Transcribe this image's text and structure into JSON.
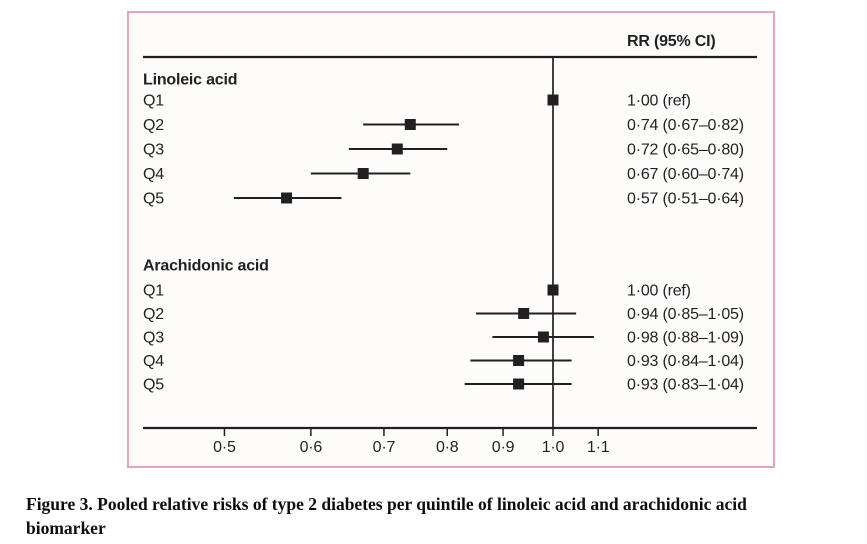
{
  "caption": {
    "line1": "Figure 3. Pooled relative risks of type 2 diabetes per quintile of linoleic acid and arachidonic acid",
    "line2": "biomarker"
  },
  "chart_data": {
    "type": "forest",
    "rr_header": "RR (95% CI)",
    "x_axis": {
      "scale": "log",
      "ticks": [
        0.5,
        0.6,
        0.7,
        0.8,
        0.9,
        1.0,
        1.1
      ],
      "tick_labels": [
        "0·5",
        "0·6",
        "0·7",
        "0·8",
        "0·9",
        "1·0",
        "1·1"
      ],
      "reference_line": 1.0,
      "range": [
        0.42,
        1.55
      ]
    },
    "sections": [
      {
        "label": "Linoleic acid",
        "rows": [
          {
            "label": "Q1",
            "rr": 1.0,
            "ci_low": null,
            "ci_high": null,
            "text": "1·00 (ref)"
          },
          {
            "label": "Q2",
            "rr": 0.74,
            "ci_low": 0.67,
            "ci_high": 0.82,
            "text": "0·74 (0·67–0·82)"
          },
          {
            "label": "Q3",
            "rr": 0.72,
            "ci_low": 0.65,
            "ci_high": 0.8,
            "text": "0·72 (0·65–0·80)"
          },
          {
            "label": "Q4",
            "rr": 0.67,
            "ci_low": 0.6,
            "ci_high": 0.74,
            "text": "0·67 (0·60–0·74)"
          },
          {
            "label": "Q5",
            "rr": 0.57,
            "ci_low": 0.51,
            "ci_high": 0.64,
            "text": "0·57 (0·51–0·64)"
          }
        ]
      },
      {
        "label": "Arachidonic acid",
        "rows": [
          {
            "label": "Q1",
            "rr": 1.0,
            "ci_low": null,
            "ci_high": null,
            "text": "1·00 (ref)"
          },
          {
            "label": "Q2",
            "rr": 0.94,
            "ci_low": 0.85,
            "ci_high": 1.05,
            "text": "0·94 (0·85–1·05)"
          },
          {
            "label": "Q3",
            "rr": 0.98,
            "ci_low": 0.88,
            "ci_high": 1.09,
            "text": "0·98 (0·88–1·09)"
          },
          {
            "label": "Q4",
            "rr": 0.93,
            "ci_low": 0.84,
            "ci_high": 1.04,
            "text": "0·93 (0·84–1·04)"
          },
          {
            "label": "Q5",
            "rr": 0.93,
            "ci_low": 0.83,
            "ci_high": 1.04,
            "text": "0·93 (0·83–1·04)"
          }
        ]
      }
    ],
    "colors": {
      "border": "#e7a4b4",
      "ink": "#231f20",
      "background": "#fdfcfb"
    }
  }
}
